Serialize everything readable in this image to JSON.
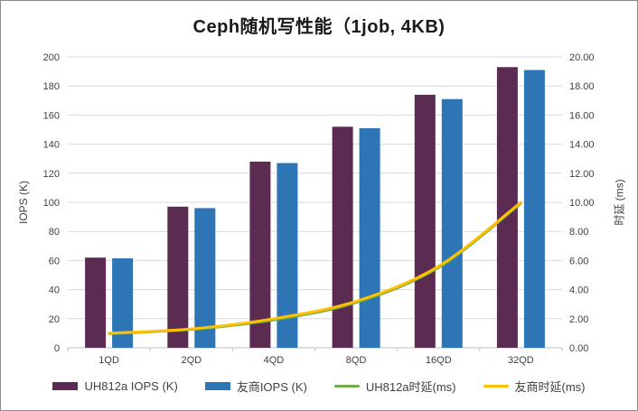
{
  "chart_data": {
    "type": "bar",
    "combo": "bar+line, dual axis",
    "title": "Ceph随机写性能（1job, 4KB)",
    "categories": [
      "1QD",
      "2QD",
      "4QD",
      "8QD",
      "16QD",
      "32QD"
    ],
    "series": [
      {
        "name": "UH812a IOPS (K)",
        "type": "bar",
        "axis": "left",
        "color": "#5C2B52",
        "values": [
          62,
          97,
          128,
          152,
          174,
          193
        ]
      },
      {
        "name": "友商IOPS (K)",
        "type": "bar",
        "axis": "left",
        "color": "#2E75B6",
        "values": [
          61.5,
          96,
          127,
          151,
          171,
          191
        ]
      },
      {
        "name": "UH812a时延(ms)",
        "type": "line",
        "axis": "right",
        "color": "#70AD47",
        "values": [
          0.95,
          1.25,
          1.9,
          3.1,
          5.5,
          9.9
        ]
      },
      {
        "name": "友商时延(ms)",
        "type": "line",
        "axis": "right",
        "color": "#FFC000",
        "values": [
          1.0,
          1.3,
          2.0,
          3.2,
          5.6,
          10.0
        ]
      }
    ],
    "left_axis": {
      "label": "IOPS (K)",
      "min": 0,
      "max": 200,
      "step": 20,
      "tick_decimals": 0
    },
    "right_axis": {
      "label": "时延 (ms)",
      "min": 0,
      "max": 20,
      "step": 2,
      "tick_decimals": 2
    },
    "grid": true,
    "legend_position": "bottom",
    "colors": {
      "gridline": "#D9D9D9",
      "axis_line": "#BFBFBF",
      "tick_text": "#404040",
      "title_text": "#1A1A1A"
    }
  }
}
